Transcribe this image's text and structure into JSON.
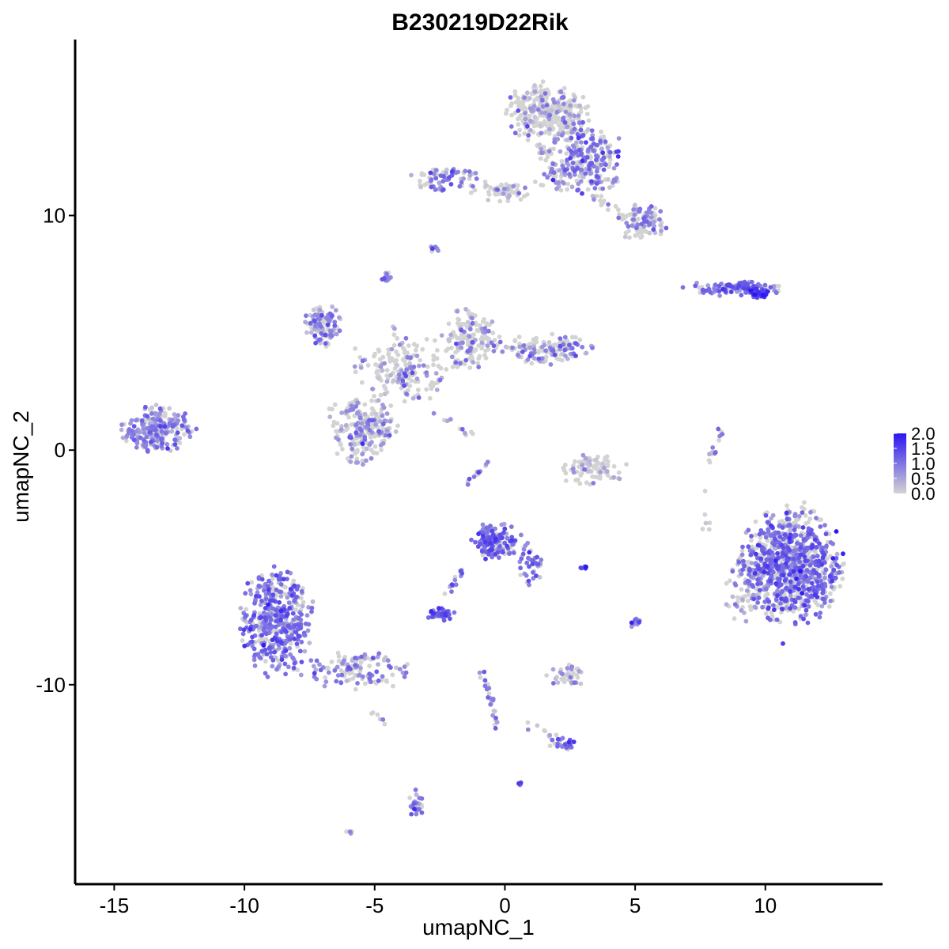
{
  "chart_data": {
    "type": "scatter",
    "title": "B230219D22Rik",
    "xlabel": "umapNC_1",
    "ylabel": "umapNC_2",
    "xlim": [
      -16.5,
      14.5
    ],
    "ylim": [
      -18.5,
      17.5
    ],
    "x_ticks": [
      -15,
      -10,
      -5,
      0,
      5,
      10
    ],
    "x_tick_labels": [
      "-15",
      "-10",
      "-5",
      "0",
      "5",
      "10"
    ],
    "y_ticks": [
      10,
      0,
      -10
    ],
    "y_tick_labels": [
      "10",
      "0",
      "-10"
    ],
    "grid": false,
    "legend": {
      "placement": "right",
      "type": "colorbar",
      "min": 0.0,
      "max": 2.0,
      "labels": [
        "2.0",
        "1.5",
        "1.0",
        "0.5",
        "0.0"
      ],
      "low_color": "#d3d3d3",
      "high_color": "#2b15f2"
    },
    "colors": {
      "low": "#d3d3d3",
      "high": "#2b15f2"
    },
    "clusters": [
      {
        "center": [
          -13.3,
          0.9
        ],
        "spread": [
          0.9,
          0.6
        ],
        "n": 230,
        "expr_frac": 0.75,
        "expr_mean": 0.7
      },
      {
        "center": [
          -8.8,
          -7.3
        ],
        "spread": [
          0.9,
          1.5
        ],
        "n": 420,
        "expr_frac": 0.8,
        "expr_mean": 0.95
      },
      {
        "center": [
          -5.6,
          -9.4
        ],
        "spread": [
          1.4,
          0.5
        ],
        "n": 120,
        "expr_frac": 0.6,
        "expr_mean": 0.8
      },
      {
        "center": [
          -5.5,
          0.9
        ],
        "spread": [
          0.9,
          0.9
        ],
        "n": 220,
        "expr_frac": 0.45,
        "expr_mean": 0.6
      },
      {
        "center": [
          -7.0,
          5.3
        ],
        "spread": [
          0.5,
          0.6
        ],
        "n": 110,
        "expr_frac": 0.65,
        "expr_mean": 0.7
      },
      {
        "center": [
          -4.0,
          3.5
        ],
        "spread": [
          1.3,
          0.9
        ],
        "n": 150,
        "expr_frac": 0.3,
        "expr_mean": 0.55
      },
      {
        "center": [
          -1.3,
          4.8
        ],
        "spread": [
          0.7,
          0.8
        ],
        "n": 140,
        "expr_frac": 0.35,
        "expr_mean": 0.6
      },
      {
        "center": [
          1.6,
          4.3
        ],
        "spread": [
          1.3,
          0.4
        ],
        "n": 130,
        "expr_frac": 0.45,
        "expr_mean": 0.75
      },
      {
        "center": [
          1.6,
          14.4
        ],
        "spread": [
          1.0,
          0.8
        ],
        "n": 280,
        "expr_frac": 0.25,
        "expr_mean": 0.6
      },
      {
        "center": [
          3.0,
          12.4
        ],
        "spread": [
          1.0,
          1.0
        ],
        "n": 260,
        "expr_frac": 0.6,
        "expr_mean": 0.85
      },
      {
        "center": [
          5.3,
          9.7
        ],
        "spread": [
          0.6,
          0.5
        ],
        "n": 90,
        "expr_frac": 0.45,
        "expr_mean": 0.75
      },
      {
        "center": [
          -2.3,
          11.6
        ],
        "spread": [
          0.8,
          0.4
        ],
        "n": 70,
        "expr_frac": 0.7,
        "expr_mean": 0.85
      },
      {
        "center": [
          -0.2,
          11.0
        ],
        "spread": [
          0.8,
          0.25
        ],
        "n": 40,
        "expr_frac": 0.1,
        "expr_mean": 0.5
      },
      {
        "center": [
          8.8,
          6.9
        ],
        "spread": [
          1.2,
          0.2
        ],
        "n": 110,
        "expr_frac": 0.75,
        "expr_mean": 1.0
      },
      {
        "center": [
          11.0,
          -4.9
        ],
        "spread": [
          1.25,
          1.55
        ],
        "n": 900,
        "expr_frac": 0.62,
        "expr_mean": 1.0
      },
      {
        "center": [
          9.2,
          -5.8
        ],
        "spread": [
          0.5,
          1.0
        ],
        "n": 60,
        "expr_frac": 0.5,
        "expr_mean": 0.7
      },
      {
        "center": [
          -0.4,
          -3.9
        ],
        "spread": [
          0.6,
          0.5
        ],
        "n": 140,
        "expr_frac": 0.8,
        "expr_mean": 1.1
      },
      {
        "center": [
          1.0,
          -4.9
        ],
        "spread": [
          0.35,
          0.6
        ],
        "n": 40,
        "expr_frac": 0.7,
        "expr_mean": 1.0
      },
      {
        "center": [
          -2.4,
          -7.0
        ],
        "spread": [
          0.35,
          0.2
        ],
        "n": 40,
        "expr_frac": 0.9,
        "expr_mean": 1.1
      },
      {
        "center": [
          3.3,
          -0.8
        ],
        "spread": [
          0.9,
          0.45
        ],
        "n": 90,
        "expr_frac": 0.25,
        "expr_mean": 0.5
      },
      {
        "center": [
          2.4,
          -9.6
        ],
        "spread": [
          0.5,
          0.3
        ],
        "n": 40,
        "expr_frac": 0.4,
        "expr_mean": 0.6
      },
      {
        "center": [
          2.2,
          -12.5
        ],
        "spread": [
          0.35,
          0.2
        ],
        "n": 25,
        "expr_frac": 0.8,
        "expr_mean": 1.0
      },
      {
        "center": [
          -3.4,
          -15.1
        ],
        "spread": [
          0.2,
          0.4
        ],
        "n": 30,
        "expr_frac": 0.75,
        "expr_mean": 0.95
      },
      {
        "center": [
          5.0,
          -7.3
        ],
        "spread": [
          0.12,
          0.25
        ],
        "n": 12,
        "expr_frac": 0.7,
        "expr_mean": 0.9
      },
      {
        "center": [
          -4.5,
          7.4
        ],
        "spread": [
          0.15,
          0.15
        ],
        "n": 12,
        "expr_frac": 0.8,
        "expr_mean": 0.9
      },
      {
        "center": [
          -2.7,
          8.6
        ],
        "spread": [
          0.12,
          0.1
        ],
        "n": 8,
        "expr_frac": 0.8,
        "expr_mean": 0.9
      },
      {
        "center": [
          9.7,
          6.7
        ],
        "spread": [
          0.3,
          0.15
        ],
        "n": 40,
        "expr_frac": 0.9,
        "expr_mean": 1.4
      },
      {
        "center": [
          3.0,
          -5.0
        ],
        "spread": [
          0.1,
          0.05
        ],
        "n": 6,
        "expr_frac": 1.0,
        "expr_mean": 1.6
      },
      {
        "center": [
          -6.0,
          -16.3
        ],
        "spread": [
          0.1,
          0.05
        ],
        "n": 4,
        "expr_frac": 0.8,
        "expr_mean": 0.9
      },
      {
        "center": [
          0.6,
          -14.2
        ],
        "spread": [
          0.05,
          0.05
        ],
        "n": 4,
        "expr_frac": 0.8,
        "expr_mean": 0.9
      }
    ],
    "trails": [
      {
        "from": [
          -1.6,
          -5.1
        ],
        "to": [
          -2.5,
          -6.6
        ],
        "n": 15,
        "expr_frac": 0.8,
        "expr_mean": 1.0
      },
      {
        "from": [
          -0.9,
          -9.3
        ],
        "to": [
          -0.3,
          -11.8
        ],
        "n": 25,
        "expr_frac": 0.75,
        "expr_mean": 0.9
      },
      {
        "from": [
          -1.6,
          -1.6
        ],
        "to": [
          -0.7,
          -0.6
        ],
        "n": 12,
        "expr_frac": 0.6,
        "expr_mean": 0.8
      },
      {
        "from": [
          8.4,
          1.1
        ],
        "to": [
          7.8,
          -0.6
        ],
        "n": 14,
        "expr_frac": 0.5,
        "expr_mean": 0.8
      },
      {
        "from": [
          -4.3,
          5.4
        ],
        "to": [
          -3.2,
          2.3
        ],
        "n": 20,
        "expr_frac": 0.3,
        "expr_mean": 0.6
      },
      {
        "from": [
          -3.5,
          2.2
        ],
        "to": [
          -1.5,
          3.8
        ],
        "n": 22,
        "expr_frac": 0.2,
        "expr_mean": 0.5
      },
      {
        "from": [
          -2.7,
          1.5
        ],
        "to": [
          -1.3,
          0.6
        ],
        "n": 10,
        "expr_frac": 0.5,
        "expr_mean": 0.8
      },
      {
        "from": [
          0.7,
          -11.6
        ],
        "to": [
          2.3,
          -12.4
        ],
        "n": 10,
        "expr_frac": 0.7,
        "expr_mean": 0.9
      },
      {
        "from": [
          -0.8,
          11.0
        ],
        "to": [
          1.4,
          11.4
        ],
        "n": 20,
        "expr_frac": 0.1,
        "expr_mean": 0.5
      },
      {
        "from": [
          1.2,
          13.2
        ],
        "to": [
          2.3,
          11.0
        ],
        "n": 25,
        "expr_frac": 0.3,
        "expr_mean": 0.6
      },
      {
        "from": [
          3.5,
          10.8
        ],
        "to": [
          4.7,
          9.8
        ],
        "n": 20,
        "expr_frac": 0.4,
        "expr_mean": 0.7
      },
      {
        "from": [
          7.5,
          -1.5
        ],
        "to": [
          7.8,
          -3.6
        ],
        "n": 6,
        "expr_frac": 0.2,
        "expr_mean": 0.5
      },
      {
        "from": [
          -5.2,
          -11.0
        ],
        "to": [
          -4.4,
          -11.8
        ],
        "n": 6,
        "expr_frac": 0.2,
        "expr_mean": 0.5
      }
    ]
  }
}
